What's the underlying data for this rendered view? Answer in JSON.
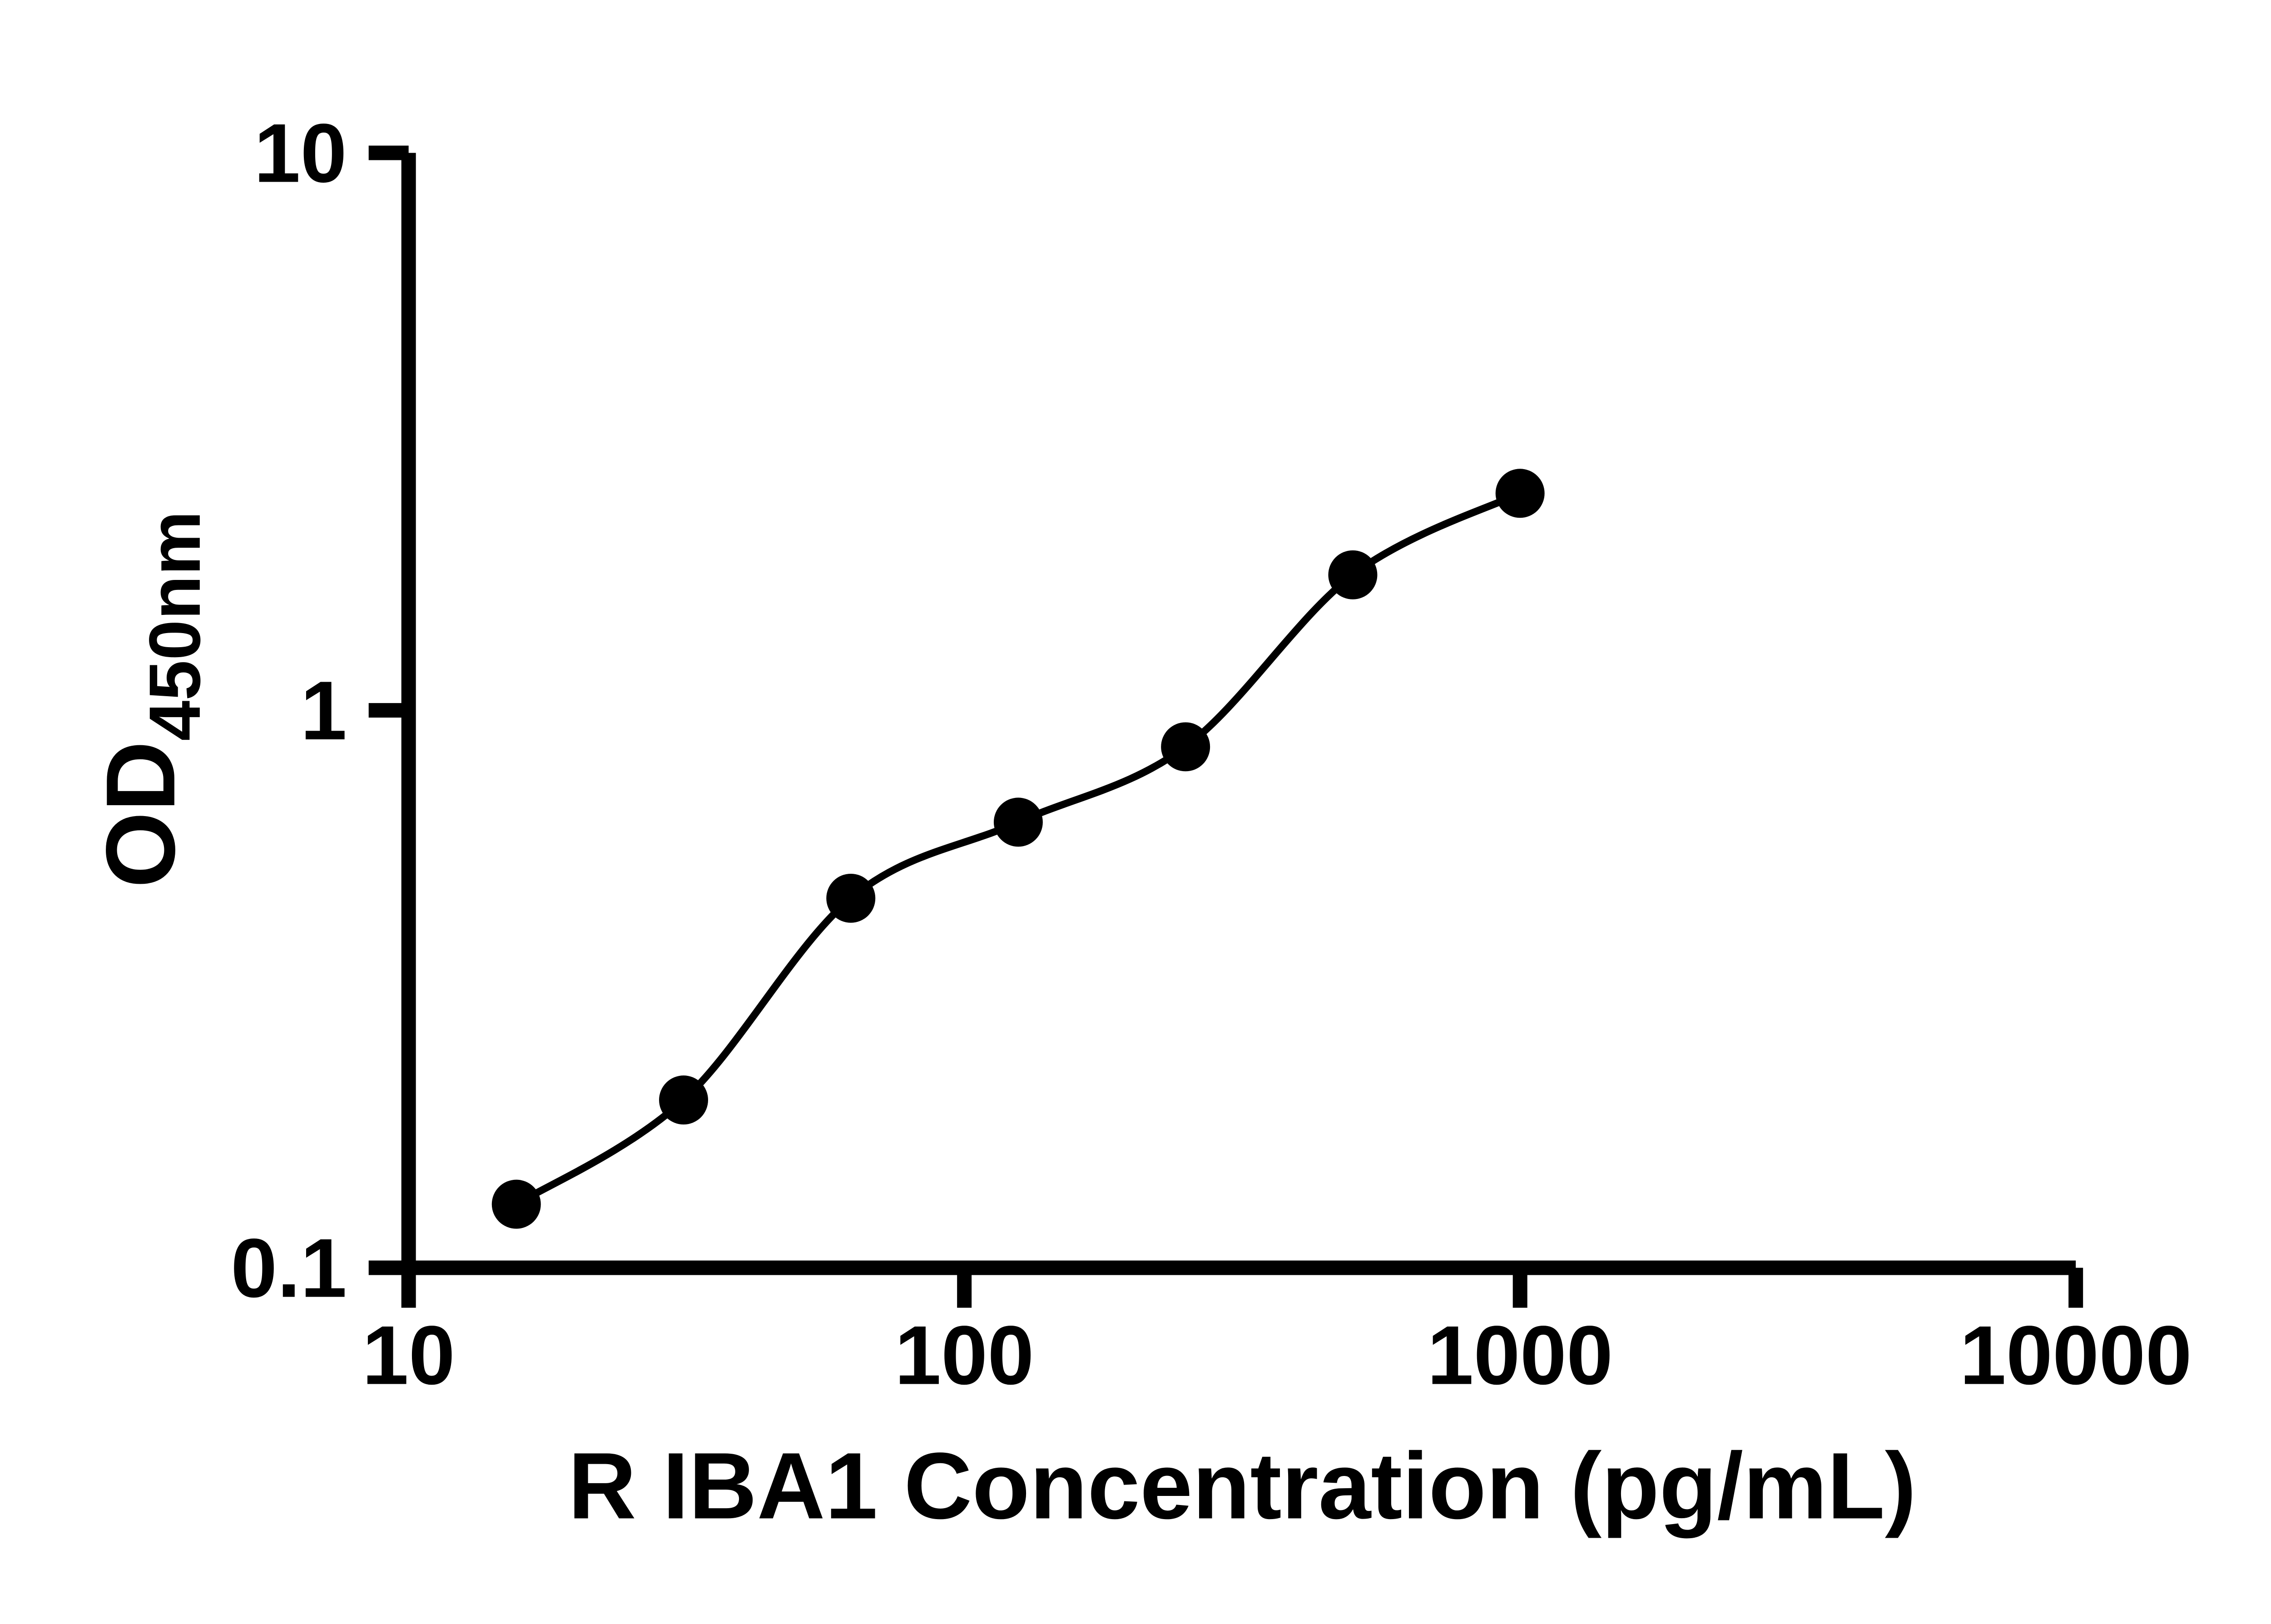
{
  "chart_data": {
    "type": "scatter",
    "title": "",
    "xlabel": "R IBA1 Concentration (pg/mL)",
    "ylabel_main": "OD",
    "ylabel_sub": "450nm",
    "xscale": "log",
    "yscale": "log",
    "xlim": [
      10,
      10000
    ],
    "ylim": [
      0.1,
      10
    ],
    "x_ticks": [
      10,
      100,
      1000,
      10000
    ],
    "x_tick_labels": [
      "10",
      "100",
      "1000",
      "10000"
    ],
    "y_ticks": [
      0.1,
      1,
      10
    ],
    "y_tick_labels": [
      "0.1",
      "1",
      "10"
    ],
    "grid": false,
    "legend": "none",
    "background": "#ffffff",
    "axis_color": "#000000",
    "series": [
      {
        "marker": "filled-circle",
        "marker_color": "#000000",
        "x": [
          15.625,
          31.25,
          62.5,
          125,
          250,
          500,
          1000
        ],
        "y": [
          0.13,
          0.2,
          0.46,
          0.63,
          0.86,
          1.75,
          2.45
        ]
      }
    ],
    "fit_line": {
      "style": "smooth",
      "color": "#000000"
    }
  }
}
